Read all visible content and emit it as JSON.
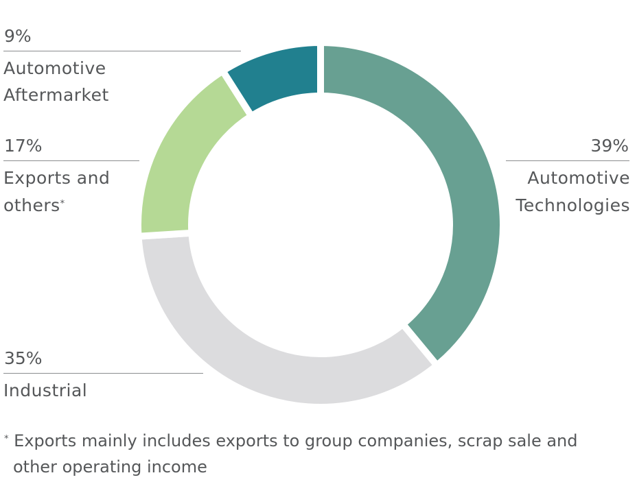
{
  "chart_data": {
    "type": "pie",
    "donut": true,
    "slices": [
      {
        "label": "Automotive Technologies",
        "line1": "Automotive",
        "line2": "Technologies",
        "value": 39,
        "pct_label": "39%",
        "color": "#68a092"
      },
      {
        "label": "Industrial",
        "line1": "Industrial",
        "line2": "",
        "value": 35,
        "pct_label": "35%",
        "color": "#dcdcde"
      },
      {
        "label": "Exports and others*",
        "line1": "Exports and",
        "line2": "others",
        "value": 17,
        "pct_label": "17%",
        "color": "#b5d995"
      },
      {
        "label": "Automotive Aftermarket",
        "line1": "Automotive",
        "line2": "Aftermarket",
        "value": 9,
        "pct_label": "9%",
        "color": "#21808f"
      }
    ],
    "start": "top",
    "direction": "clockwise"
  },
  "footnote": {
    "mark": "*",
    "text_line1": "Exports mainly includes exports to group companies, scrap sale and",
    "text_line2": "other operating income"
  }
}
